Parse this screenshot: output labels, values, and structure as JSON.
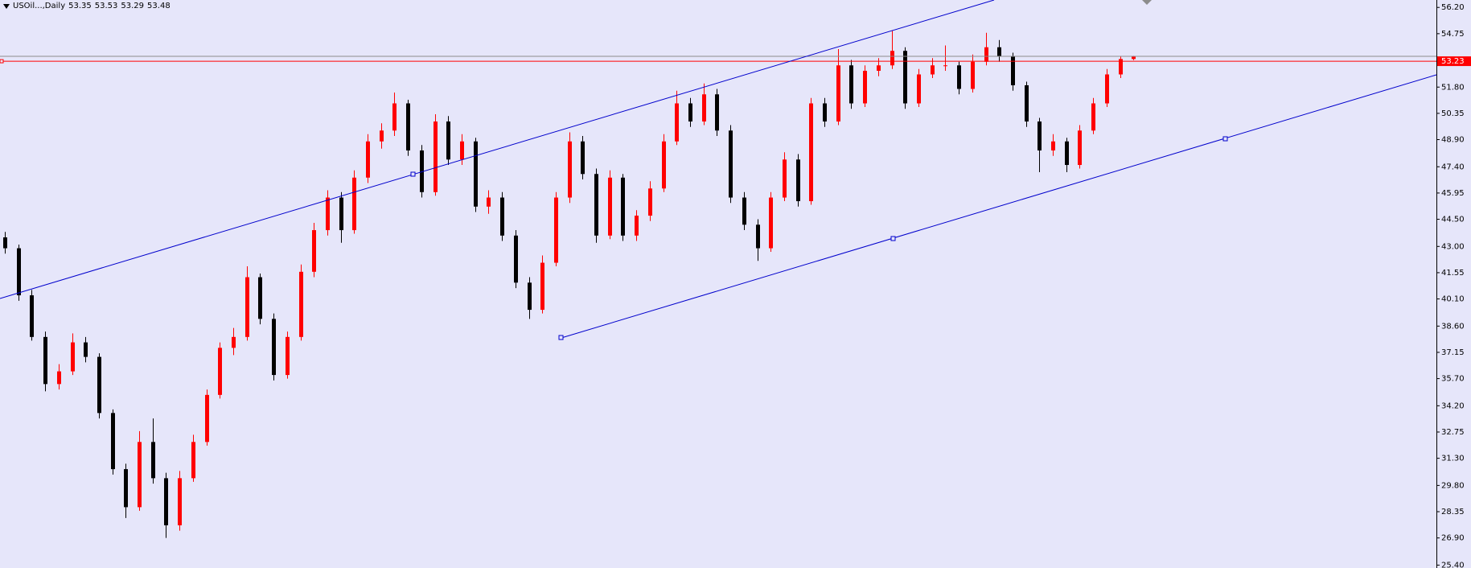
{
  "chart_data": {
    "type": "candlestick",
    "symbol": "USOil...,Daily",
    "header_ohlc": [
      53.35,
      53.53,
      53.29,
      53.48
    ],
    "ylim": [
      25.24,
      56.61
    ],
    "yticks": [
      {
        "value": 56.2,
        "label": "56.20"
      },
      54.75,
      {
        "value": 53.3,
        "label": "53.30"
      },
      {
        "value": 51.8,
        "label": "51.80"
      },
      50.35,
      {
        "value": 48.9,
        "label": "48.90"
      },
      {
        "value": 47.4,
        "label": "47.40"
      },
      45.95,
      {
        "value": 44.5,
        "label": "44.50"
      },
      {
        "value": 43,
        "label": "43.00"
      },
      41.55,
      {
        "value": 40.1,
        "label": "40.10"
      },
      {
        "value": 38.6,
        "label": "38.60"
      },
      37.15,
      {
        "value": 35.7,
        "label": "35.70"
      },
      {
        "value": 34.2,
        "label": "34.20"
      },
      32.75,
      {
        "value": 31.3,
        "label": "31.30"
      },
      {
        "value": 29.8,
        "label": "29.80"
      },
      28.35,
      {
        "value": 26.9,
        "label": "26.90"
      },
      {
        "value": 25.4,
        "label": "25.40"
      }
    ],
    "open": [
      43.5,
      42.9,
      40.3,
      38.0,
      35.4,
      36.1,
      37.7,
      36.9,
      33.8,
      30.7,
      28.6,
      32.2,
      30.2,
      27.6,
      30.2,
      32.2,
      34.8,
      37.4,
      38.0,
      41.3,
      39.0,
      35.9,
      38.0,
      41.6,
      43.9,
      45.7,
      43.9,
      46.8,
      48.8,
      49.4,
      50.9,
      48.3,
      46.0,
      49.9,
      47.8,
      48.8,
      45.2,
      45.7,
      43.6,
      41.0,
      39.5,
      42.1,
      45.7,
      48.8,
      47.0,
      43.6,
      46.8,
      43.6,
      44.7,
      46.2,
      48.8,
      50.9,
      49.9,
      51.4,
      49.4,
      45.7,
      44.2,
      42.9,
      45.7,
      47.8,
      45.5,
      50.9,
      49.9,
      53.0,
      50.9,
      52.7,
      53.0,
      53.8,
      50.9,
      52.5,
      53.0,
      53.0,
      51.7,
      53.2,
      54.0,
      53.5,
      51.9,
      49.9,
      48.3,
      48.8,
      47.5,
      49.4,
      50.9,
      52.5,
      53.35
    ],
    "high": [
      43.8,
      43.1,
      40.6,
      38.3,
      36.5,
      38.2,
      38.0,
      37.1,
      34.0,
      31.0,
      32.8,
      33.5,
      30.5,
      30.6,
      32.6,
      35.1,
      37.7,
      38.5,
      41.9,
      41.5,
      39.3,
      38.3,
      42.0,
      44.3,
      46.1,
      46.0,
      47.2,
      49.2,
      49.8,
      51.5,
      51.1,
      48.6,
      50.3,
      50.2,
      49.2,
      49.0,
      46.1,
      46.0,
      43.9,
      41.3,
      42.5,
      46.0,
      49.3,
      49.1,
      47.3,
      47.2,
      47.0,
      45.0,
      46.6,
      49.2,
      51.6,
      51.2,
      52.0,
      51.7,
      49.7,
      46.0,
      44.5,
      46.0,
      48.2,
      48.1,
      51.2,
      51.2,
      53.9,
      53.3,
      53.0,
      53.4,
      54.9,
      54.0,
      52.8,
      53.4,
      54.1,
      53.2,
      53.6,
      54.8,
      54.4,
      53.7,
      52.1,
      50.1,
      49.2,
      49.0,
      49.7,
      51.2,
      52.8,
      53.5,
      53.53
    ],
    "low": [
      42.6,
      40.0,
      37.8,
      35.0,
      35.1,
      35.9,
      36.6,
      33.5,
      30.4,
      28.0,
      28.4,
      29.9,
      26.9,
      27.3,
      30.0,
      32.0,
      34.6,
      37.0,
      37.8,
      38.7,
      35.6,
      35.7,
      37.8,
      41.3,
      43.6,
      43.2,
      43.7,
      46.5,
      48.4,
      49.1,
      48.0,
      45.7,
      45.8,
      47.5,
      47.5,
      44.9,
      44.8,
      43.3,
      40.7,
      39.0,
      39.3,
      41.9,
      45.4,
      46.7,
      43.2,
      43.4,
      43.3,
      43.3,
      44.4,
      46.0,
      48.6,
      49.6,
      49.7,
      49.1,
      45.4,
      43.9,
      42.2,
      42.7,
      45.5,
      45.2,
      45.3,
      49.6,
      49.7,
      50.6,
      50.7,
      52.4,
      52.8,
      50.6,
      50.7,
      52.3,
      52.7,
      51.4,
      51.5,
      53.0,
      53.2,
      51.6,
      49.6,
      47.1,
      48.0,
      47.1,
      47.3,
      49.2,
      50.7,
      52.3,
      53.29
    ],
    "close": [
      42.9,
      40.3,
      38.0,
      35.4,
      36.1,
      37.7,
      36.9,
      33.8,
      30.7,
      28.6,
      32.2,
      30.2,
      27.6,
      30.2,
      32.2,
      34.8,
      37.4,
      38.0,
      41.3,
      39.0,
      35.9,
      38.0,
      41.6,
      43.9,
      45.7,
      43.9,
      46.8,
      48.8,
      49.4,
      50.9,
      48.3,
      46.0,
      49.9,
      47.8,
      48.8,
      45.2,
      45.7,
      43.6,
      41.0,
      39.5,
      42.1,
      45.7,
      48.8,
      47.0,
      43.6,
      46.8,
      43.6,
      44.7,
      46.2,
      48.8,
      50.9,
      49.9,
      51.4,
      49.4,
      45.7,
      44.2,
      42.9,
      45.7,
      47.8,
      45.5,
      50.9,
      49.9,
      53.0,
      50.9,
      52.7,
      53.0,
      53.8,
      50.9,
      52.5,
      53.0,
      53.0,
      51.7,
      53.2,
      54.0,
      53.5,
      51.9,
      49.9,
      48.3,
      48.8,
      47.5,
      49.4,
      50.9,
      52.5,
      53.35,
      53.48
    ],
    "up_color": "#ff0000",
    "down_color": "#000000",
    "bid": 53.23,
    "bid_color": "#ff0000",
    "ask": 53.5,
    "ask_color": "#8c8c8c"
  }
}
